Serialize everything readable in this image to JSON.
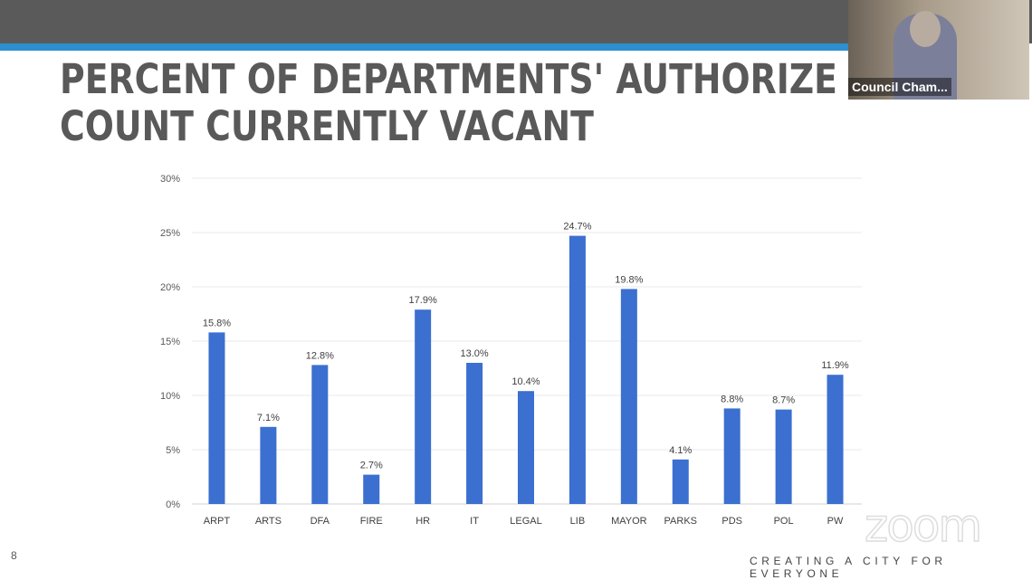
{
  "slide": {
    "title_line1": "PERCENT OF DEPARTMENTS' AUTHORIZE",
    "title_line2": "COUNT CURRENTLY VACANT",
    "page_number": "8",
    "footer": "CREATING A CITY FOR EVERYONE"
  },
  "video": {
    "participant_label": "Council Cham..."
  },
  "watermark": "zoom",
  "colors": {
    "bar": "#3b6fd0",
    "accent": "#2e8fd0",
    "topbar": "#5a5a5a"
  },
  "chart_data": {
    "type": "bar",
    "categories": [
      "ARPT",
      "ARTS",
      "DFA",
      "FIRE",
      "HR",
      "IT",
      "LEGAL",
      "LIB",
      "MAYOR",
      "PARKS",
      "PDS",
      "POL",
      "PW"
    ],
    "values": [
      15.8,
      7.1,
      12.8,
      2.7,
      17.9,
      13.0,
      10.4,
      24.7,
      19.8,
      4.1,
      8.8,
      8.7,
      11.9
    ],
    "data_labels": [
      "15.8%",
      "7.1%",
      "12.8%",
      "2.7%",
      "17.9%",
      "13.0%",
      "10.4%",
      "24.7%",
      "19.8%",
      "4.1%",
      "8.8%",
      "8.7%",
      "11.9%"
    ],
    "yticks": [
      "0%",
      "5%",
      "10%",
      "15%",
      "20%",
      "25%",
      "30%"
    ],
    "ylim": [
      0,
      30
    ],
    "grid": true,
    "xlabel": "",
    "ylabel": ""
  }
}
